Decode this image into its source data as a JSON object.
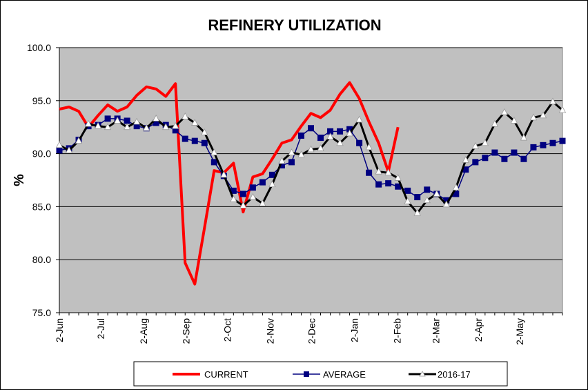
{
  "chart_data": {
    "type": "line",
    "title": "REFINERY UTILIZATION",
    "ylabel": "%",
    "xlabel": "",
    "ylim": [
      75.0,
      100.0
    ],
    "yticks": [
      "100.0",
      "95.0",
      "90.0",
      "85.0",
      "80.0",
      "75.0"
    ],
    "yticks_values": [
      100,
      95,
      90,
      85,
      80,
      75
    ],
    "xticks": [
      "2-Jun",
      "2-Jul",
      "2-Aug",
      "2-Sep",
      "2-Oct",
      "2-Nov",
      "2-Dec",
      "2-Jan",
      "2-Feb",
      "2-Mar",
      "2-Apr",
      "2-May"
    ],
    "grid": "horizontal",
    "legend_position": "bottom",
    "series": [
      {
        "name": "CURRENT",
        "color": "#ff0000",
        "style": "thick-line",
        "values": [
          94.2,
          94.4,
          94.0,
          92.5,
          93.6,
          94.6,
          94.0,
          94.4,
          95.5,
          96.3,
          96.1,
          95.4,
          96.6,
          79.7,
          77.7,
          83.0,
          88.4,
          88.2,
          89.1,
          84.5,
          87.8,
          88.1,
          89.5,
          91.0,
          91.3,
          92.6,
          93.8,
          93.4,
          94.1,
          95.6,
          96.7,
          95.2,
          93.0,
          91.0,
          88.3,
          92.5
        ]
      },
      {
        "name": "AVERAGE",
        "color": "#000080",
        "style": "line-square-markers",
        "values": [
          90.3,
          90.5,
          91.3,
          92.6,
          92.7,
          93.3,
          93.3,
          93.1,
          92.6,
          92.4,
          92.9,
          92.7,
          92.2,
          91.4,
          91.2,
          91.0,
          89.2,
          87.9,
          86.5,
          86.2,
          86.8,
          87.3,
          88.0,
          88.9,
          89.2,
          91.7,
          92.4,
          91.5,
          92.1,
          92.1,
          92.3,
          91.0,
          88.2,
          87.1,
          87.2,
          86.9,
          86.5,
          85.9,
          86.6,
          86.2,
          85.6,
          86.2,
          88.5,
          89.2,
          89.6,
          90.1,
          89.5,
          90.1,
          89.5,
          90.6,
          90.8,
          91.0,
          91.2
        ]
      },
      {
        "name": "2016-17",
        "color": "#000000",
        "style": "thick-line-triangle-markers",
        "values": [
          90.8,
          90.3,
          91.2,
          92.8,
          92.6,
          92.5,
          93.1,
          92.5,
          93.0,
          92.4,
          93.3,
          92.5,
          92.6,
          93.5,
          92.9,
          92.0,
          90.1,
          88.0,
          85.7,
          85.1,
          85.9,
          85.3,
          87.1,
          89.3,
          90.1,
          89.9,
          90.4,
          90.5,
          91.6,
          91.0,
          91.9,
          93.2,
          90.6,
          88.3,
          88.2,
          87.7,
          85.5,
          84.4,
          85.6,
          86.2,
          85.2,
          86.8,
          89.4,
          90.7,
          91.0,
          92.8,
          93.9,
          93.1,
          91.5,
          93.4,
          93.6,
          94.9,
          94.1
        ]
      }
    ]
  },
  "colors": {
    "plot_background": "#c0c0c0",
    "current": "#ff0000",
    "average": "#000080",
    "prior_year": "#000000"
  }
}
